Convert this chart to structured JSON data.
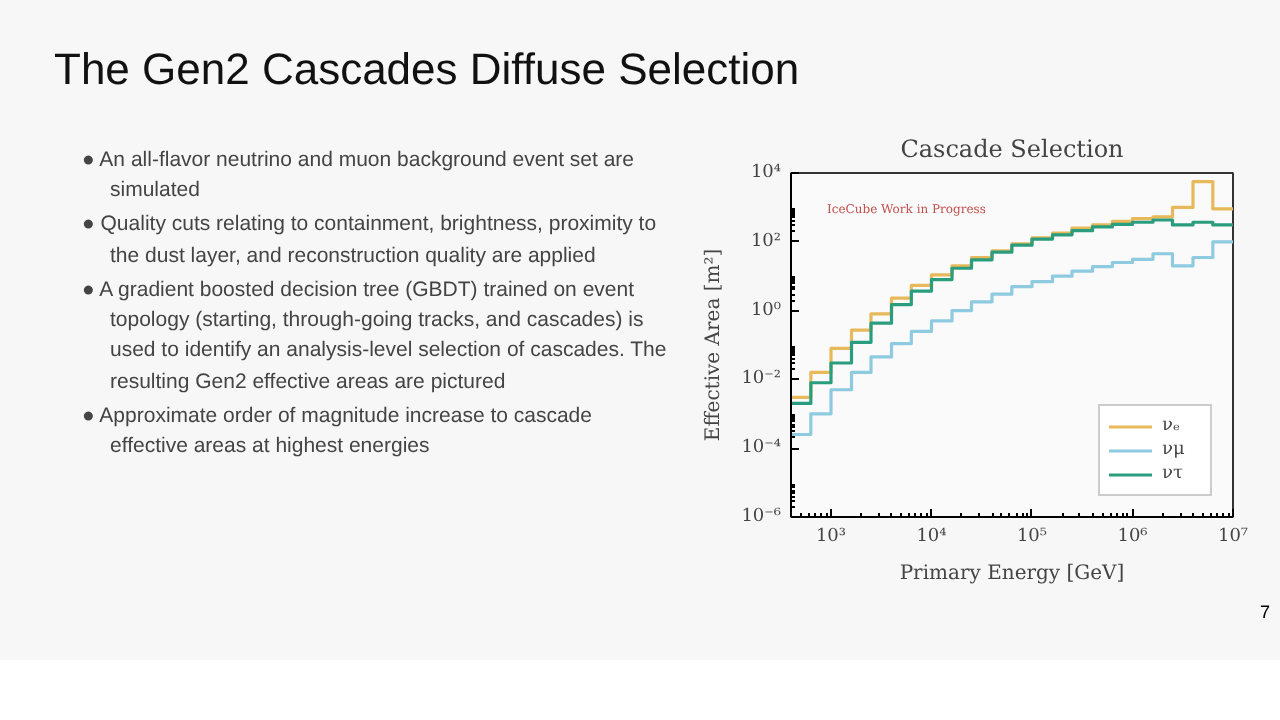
{
  "chart_data": {
    "type": "step",
    "title": "The Gen2 Cascades Diffuse Selection",
    "subtitle": "Cascade Selection",
    "xlabel": "Primary Energy [GeV]",
    "ylabel": "Effective Area [m²]",
    "annotations": [
      "● An all-flavor neutrino and muon background event set are simulated",
      "● Quality cuts relating to containment, brightness, proximity to the dust layer, and reconstruction quality are applied",
      "● A gradient boosted decision tree (GBDT) trained on event topology (starting, through-going tracks, and cascades) is used to identify an analysis-level selection of cascades. The resulting Gen2 effective areas are pictured",
      "● Approximate order of magnitude increase to cascade effective areas at highest energies",
      "IceCube Work in Progress",
      "7"
    ],
    "x": [
      400,
      630,
      1000,
      1600,
      2500,
      4000,
      6300,
      10000,
      16000,
      25000,
      40000,
      63000,
      100000,
      160000,
      250000,
      400000,
      630000,
      1000000,
      1600000,
      2500000,
      4000000,
      6300000,
      10000000
    ],
    "series": [
      {
        "name": "νₑ",
        "color": "#e8b95a",
        "values": [
          0.003,
          0.016,
          0.08,
          0.27,
          0.8,
          2.3,
          5.4,
          11,
          20,
          35,
          55,
          87,
          130,
          180,
          250,
          310,
          390,
          470,
          530,
          1000,
          5600,
          900,
          900
        ]
      },
      {
        "name": "νμ",
        "color": "#8ecae0",
        "values": [
          0.00025,
          0.001,
          0.005,
          0.016,
          0.045,
          0.11,
          0.25,
          0.5,
          1,
          1.8,
          3,
          5,
          7,
          10,
          14,
          19,
          25,
          31,
          45,
          20,
          35,
          100,
          100
        ]
      },
      {
        "name": "ντ",
        "color": "#2a9d7f",
        "values": [
          0.002,
          0.008,
          0.03,
          0.12,
          0.43,
          1.5,
          3.7,
          8,
          17,
          30,
          50,
          80,
          120,
          160,
          210,
          270,
          320,
          370,
          430,
          310,
          370,
          310,
          310
        ]
      }
    ],
    "log": "xy",
    "xlim": [
      400,
      10000000
    ],
    "ylim": [
      1e-06,
      10000
    ],
    "xticks": [
      {
        "value": 1000,
        "label": "10³"
      },
      {
        "value": 10000,
        "label": "10⁴"
      },
      {
        "value": 100000,
        "label": "10⁵"
      },
      {
        "value": 1000000,
        "label": "10⁶"
      },
      {
        "value": 10000000,
        "label": "10⁷"
      }
    ],
    "yticks": [
      {
        "value": 1e-06,
        "label": "10⁻⁶"
      },
      {
        "value": 0.0001,
        "label": "10⁻⁴"
      },
      {
        "value": 0.01,
        "label": "10⁻²"
      },
      {
        "value": 1,
        "label": "10⁰"
      },
      {
        "value": 100,
        "label": "10²"
      },
      {
        "value": 10000,
        "label": "10⁴"
      }
    ],
    "legend": "bottom right",
    "grid": false
  }
}
